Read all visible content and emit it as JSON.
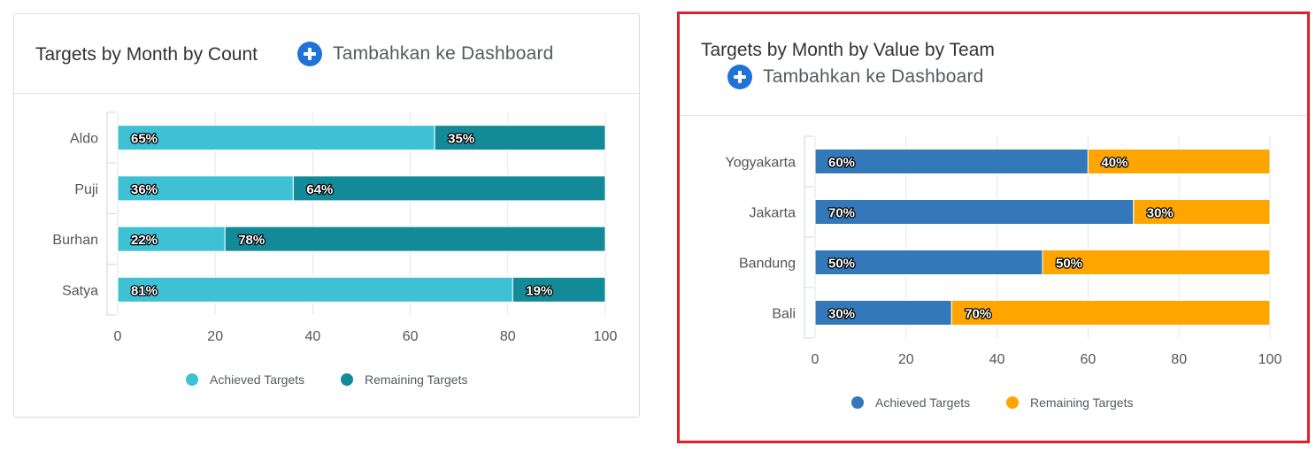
{
  "cards": [
    {
      "title": "Targets by Month by Count",
      "add_label": "Tambahkan ke Dashboard"
    },
    {
      "title": "Targets by Month by Value by Team",
      "add_label": "Tambahkan ke Dashboard"
    }
  ],
  "colors": {
    "left_achieved": "#3ec1d4",
    "left_remaining": "#138a98",
    "right_achieved": "#3378b8",
    "right_remaining": "#ffa500"
  },
  "chart_data": [
    {
      "type": "bar",
      "orientation": "horizontal",
      "stacked": true,
      "title": "Targets by Month by Count",
      "categories": [
        "Aldo",
        "Puji",
        "Burhan",
        "Satya"
      ],
      "series": [
        {
          "name": "Achieved Targets",
          "values": [
            65,
            36,
            22,
            81
          ],
          "labels": [
            "65%",
            "36%",
            "22%",
            "81%"
          ]
        },
        {
          "name": "Remaining Targets",
          "values": [
            35,
            64,
            78,
            19
          ],
          "labels": [
            "35%",
            "64%",
            "78%",
            "19%"
          ]
        }
      ],
      "xlim": [
        0,
        100
      ],
      "xticks": [
        "0",
        "20",
        "40",
        "60",
        "80",
        "100"
      ],
      "grid": true,
      "legend": "bottom-center"
    },
    {
      "type": "bar",
      "orientation": "horizontal",
      "stacked": true,
      "title": "Targets by Month by Value by Team",
      "categories": [
        "Yogyakarta",
        "Jakarta",
        "Bandung",
        "Bali"
      ],
      "series": [
        {
          "name": "Achieved Targets",
          "values": [
            60,
            70,
            50,
            30
          ],
          "labels": [
            "60%",
            "70%",
            "50%",
            "30%"
          ]
        },
        {
          "name": "Remaining Targets",
          "values": [
            40,
            30,
            50,
            70
          ],
          "labels": [
            "40%",
            "30%",
            "50%",
            "70%"
          ]
        }
      ],
      "xlim": [
        0,
        100
      ],
      "xticks": [
        "0",
        "20",
        "40",
        "60",
        "80",
        "100"
      ],
      "grid": true,
      "legend": "bottom-center"
    }
  ]
}
